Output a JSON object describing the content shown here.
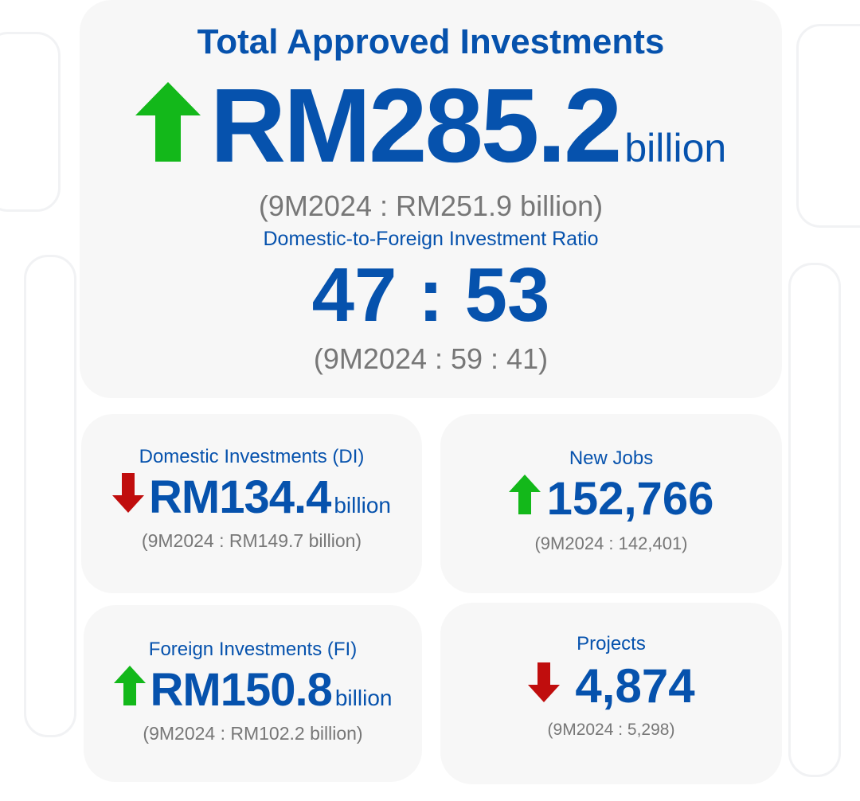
{
  "colors": {
    "blue": "#0652ad",
    "up": "#13b81a",
    "down": "#c00d0d",
    "muted": "#777777",
    "card": "#f7f7f7"
  },
  "total": {
    "title": "Total Approved Investments",
    "trend": "up",
    "value": "RM285.2",
    "unit": "billion",
    "comparison": "(9M2024 : RM251.9 billion)"
  },
  "ratio": {
    "title": "Domestic-to-Foreign Investment Ratio",
    "value": "47 : 53",
    "comparison": "(9M2024 : 59 : 41)"
  },
  "domestic": {
    "title": "Domestic Investments (DI)",
    "trend": "down",
    "value": "RM134.4",
    "unit": "billion",
    "comparison": "(9M2024 : RM149.7 billion)"
  },
  "jobs": {
    "title": "New Jobs",
    "trend": "up",
    "value": "152,766",
    "comparison": "(9M2024 : 142,401)"
  },
  "foreign": {
    "title": "Foreign Investments (FI)",
    "trend": "up",
    "value": "RM150.8",
    "unit": "billion",
    "comparison": "(9M2024 : RM102.2 billion)"
  },
  "projects": {
    "title": "Projects",
    "trend": "down",
    "value": "4,874",
    "comparison": "(9M2024 : 5,298)"
  }
}
